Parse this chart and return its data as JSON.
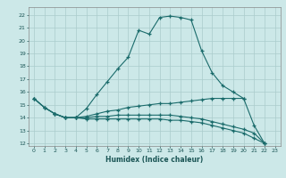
{
  "xlabel": "Humidex (Indice chaleur)",
  "bg_color": "#cce8e8",
  "grid_color": "#aacccc",
  "line_color": "#1a6b6b",
  "xlim": [
    -0.5,
    23.5
  ],
  "ylim": [
    11.8,
    22.6
  ],
  "xticks": [
    0,
    1,
    2,
    3,
    4,
    5,
    6,
    7,
    8,
    9,
    10,
    11,
    12,
    13,
    14,
    15,
    16,
    17,
    18,
    19,
    20,
    21,
    22,
    23
  ],
  "yticks": [
    12,
    13,
    14,
    15,
    16,
    17,
    18,
    19,
    20,
    21,
    22
  ],
  "line1_x": [
    0,
    1,
    2,
    3,
    4,
    5,
    6,
    7,
    8,
    9,
    10,
    11,
    12,
    13,
    14,
    15,
    16,
    17,
    18,
    19,
    20
  ],
  "line1_y": [
    15.5,
    14.8,
    14.3,
    14.0,
    14.0,
    14.7,
    15.8,
    16.8,
    17.8,
    18.7,
    20.8,
    20.5,
    21.8,
    21.9,
    21.8,
    21.6,
    19.2,
    17.5,
    16.5,
    16.0,
    15.5
  ],
  "line2_x": [
    0,
    1,
    2,
    3,
    4,
    5,
    6,
    7,
    8,
    9,
    10,
    11,
    12,
    13,
    14,
    15,
    16,
    17,
    18,
    19,
    20,
    21,
    22
  ],
  "line2_y": [
    15.5,
    14.8,
    14.3,
    14.0,
    14.0,
    14.1,
    14.3,
    14.5,
    14.6,
    14.8,
    14.9,
    15.0,
    15.1,
    15.1,
    15.2,
    15.3,
    15.4,
    15.5,
    15.5,
    15.5,
    15.5,
    13.4,
    12.0
  ],
  "line3_x": [
    0,
    1,
    2,
    3,
    4,
    5,
    6,
    7,
    8,
    9,
    10,
    11,
    12,
    13,
    14,
    15,
    16,
    17,
    18,
    19,
    20,
    21,
    22
  ],
  "line3_y": [
    15.5,
    14.8,
    14.3,
    14.0,
    14.0,
    14.0,
    14.1,
    14.1,
    14.2,
    14.2,
    14.2,
    14.2,
    14.2,
    14.2,
    14.1,
    14.0,
    13.9,
    13.7,
    13.5,
    13.3,
    13.1,
    12.8,
    12.0
  ],
  "line4_x": [
    2,
    3,
    4,
    5,
    6,
    7,
    8,
    9,
    10,
    11,
    12,
    13,
    14,
    15,
    16,
    17,
    18,
    19,
    20,
    21,
    22
  ],
  "line4_y": [
    14.3,
    14.0,
    14.0,
    13.9,
    13.9,
    13.9,
    13.9,
    13.9,
    13.9,
    13.9,
    13.9,
    13.8,
    13.8,
    13.7,
    13.6,
    13.4,
    13.2,
    13.0,
    12.8,
    12.4,
    12.0
  ]
}
